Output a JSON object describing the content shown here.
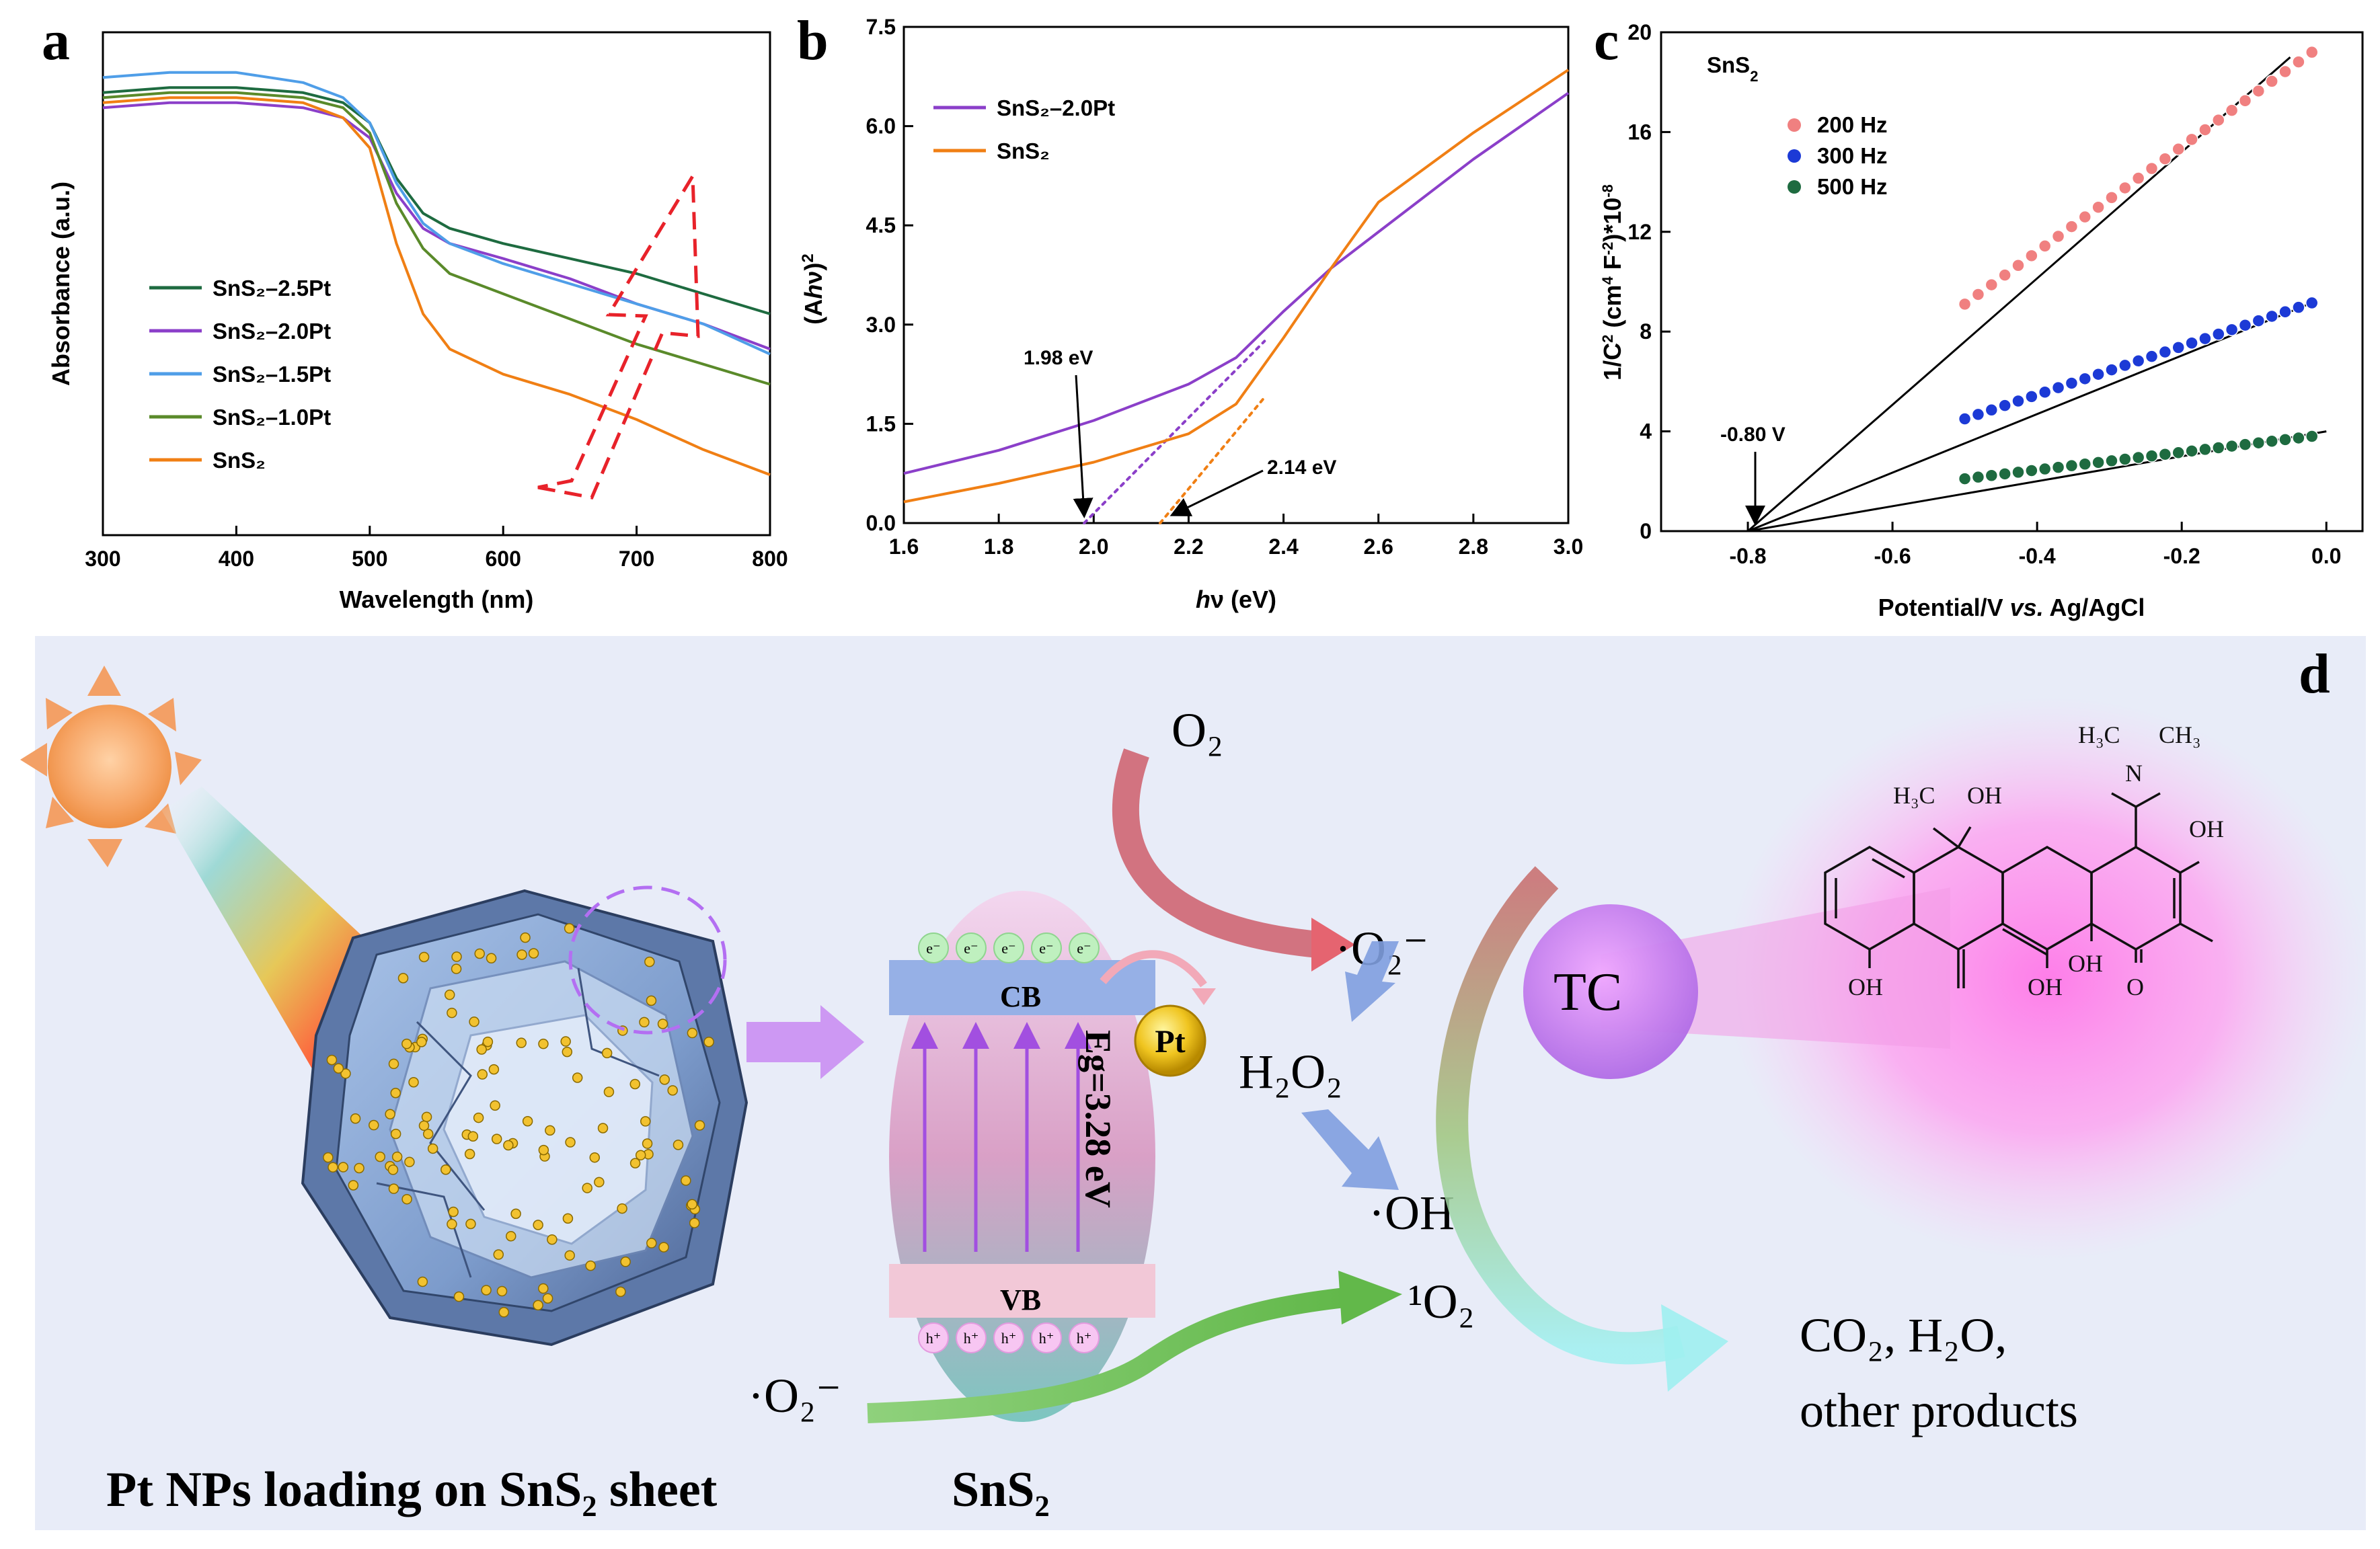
{
  "chart_data": [
    {
      "panel": "a",
      "type": "line",
      "xlabel": "Wavelength (nm)",
      "ylabel": "Absorbance (a.u.)",
      "xlim": [
        300,
        800
      ],
      "ylim": [
        0,
        1
      ],
      "xticks": [
        300,
        400,
        500,
        600,
        700,
        800
      ],
      "legend_position": "left",
      "series": [
        {
          "name": "SnS₂–2.5Pt",
          "color": "#1e6b40",
          "x": [
            300,
            350,
            400,
            450,
            480,
            500,
            520,
            540,
            560,
            600,
            650,
            700,
            750,
            800
          ],
          "y": [
            0.88,
            0.89,
            0.89,
            0.88,
            0.86,
            0.82,
            0.71,
            0.64,
            0.61,
            0.58,
            0.55,
            0.52,
            0.48,
            0.44
          ]
        },
        {
          "name": "SnS₂–2.0Pt",
          "color": "#8b3fc9",
          "x": [
            300,
            350,
            400,
            450,
            480,
            500,
            520,
            540,
            560,
            600,
            650,
            700,
            750,
            800
          ],
          "y": [
            0.85,
            0.86,
            0.86,
            0.85,
            0.83,
            0.79,
            0.68,
            0.61,
            0.58,
            0.55,
            0.51,
            0.46,
            0.42,
            0.37
          ]
        },
        {
          "name": "SnS₂–1.5Pt",
          "color": "#4f9ee8",
          "x": [
            300,
            350,
            400,
            450,
            480,
            500,
            520,
            540,
            560,
            600,
            650,
            700,
            750,
            800
          ],
          "y": [
            0.91,
            0.92,
            0.92,
            0.9,
            0.87,
            0.82,
            0.7,
            0.62,
            0.58,
            0.54,
            0.5,
            0.46,
            0.42,
            0.36
          ]
        },
        {
          "name": "SnS₂–1.0Pt",
          "color": "#5a8a2a",
          "x": [
            300,
            350,
            400,
            450,
            480,
            500,
            520,
            540,
            560,
            600,
            650,
            700,
            750,
            800
          ],
          "y": [
            0.87,
            0.88,
            0.88,
            0.87,
            0.85,
            0.8,
            0.66,
            0.57,
            0.52,
            0.48,
            0.43,
            0.38,
            0.34,
            0.3
          ]
        },
        {
          "name": "SnS₂",
          "color": "#f07f14",
          "x": [
            300,
            350,
            400,
            450,
            480,
            500,
            520,
            540,
            560,
            600,
            650,
            700,
            750,
            800
          ],
          "y": [
            0.86,
            0.87,
            0.87,
            0.86,
            0.83,
            0.77,
            0.58,
            0.44,
            0.37,
            0.32,
            0.28,
            0.23,
            0.17,
            0.12
          ]
        }
      ],
      "annotation": "red dashed arrow pointing toward increasing absorbance"
    },
    {
      "panel": "b",
      "type": "line",
      "xlabel": "hν (eV)",
      "ylabel": "(Ahν)²",
      "xlim": [
        1.6,
        3.0
      ],
      "ylim": [
        0,
        7.5
      ],
      "xticks": [
        1.6,
        1.8,
        2.0,
        2.2,
        2.4,
        2.6,
        2.8,
        3.0
      ],
      "yticks": [
        0.0,
        1.5,
        3.0,
        4.5,
        6.0,
        7.5
      ],
      "series": [
        {
          "name": "SnS₂–2.0Pt",
          "color": "#8b3fc9",
          "x": [
            1.6,
            1.8,
            2.0,
            2.2,
            2.3,
            2.4,
            2.5,
            2.6,
            2.8,
            3.0
          ],
          "y": [
            0.75,
            1.1,
            1.55,
            2.1,
            2.5,
            3.2,
            3.85,
            4.4,
            5.5,
            6.5
          ]
        },
        {
          "name": "SnS₂",
          "color": "#f07f14",
          "x": [
            1.6,
            1.8,
            2.0,
            2.2,
            2.3,
            2.4,
            2.5,
            2.6,
            2.8,
            3.0
          ],
          "y": [
            0.32,
            0.6,
            0.92,
            1.35,
            1.8,
            2.8,
            3.85,
            4.85,
            5.9,
            6.85
          ]
        }
      ],
      "tangents": [
        {
          "series": "SnS₂–2.0Pt",
          "color": "#8b3fc9",
          "x": [
            1.98,
            2.36
          ],
          "y": [
            0,
            2.75
          ]
        },
        {
          "series": "SnS₂",
          "color": "#f07f14",
          "x": [
            2.14,
            2.36
          ],
          "y": [
            0,
            1.9
          ]
        }
      ],
      "annotations": [
        {
          "text": "1.98 eV",
          "x": 1.98
        },
        {
          "text": "2.14 eV",
          "x": 2.14
        }
      ]
    },
    {
      "panel": "c",
      "type": "scatter",
      "title": "SnS₂",
      "xlabel": "Potential/V vs. Ag/AgCl",
      "ylabel": "1/C² (cm⁴ F⁻²)*10⁻⁸",
      "xlim": [
        -0.92,
        0.05
      ],
      "ylim": [
        0,
        20
      ],
      "xticks": [
        -0.8,
        -0.6,
        -0.4,
        -0.2,
        0.0
      ],
      "yticks": [
        0,
        4,
        8,
        12,
        16,
        20
      ],
      "series": [
        {
          "name": "200 Hz",
          "color": "#f08080",
          "x_start": -0.5,
          "x_end": -0.02,
          "y_start": 9.1,
          "y_end": 19.2,
          "fit_x": [
            -0.8,
            -0.05
          ],
          "fit_y": [
            0,
            19.0
          ]
        },
        {
          "name": "300 Hz",
          "color": "#1c3ad6",
          "x_start": -0.5,
          "x_end": -0.02,
          "y_start": 4.5,
          "y_end": 9.15,
          "fit_x": [
            -0.8,
            -0.02
          ],
          "fit_y": [
            0,
            9.15
          ]
        },
        {
          "name": "500 Hz",
          "color": "#1e6b40",
          "x_start": -0.5,
          "x_end": -0.02,
          "y_start": 2.1,
          "y_end": 3.8,
          "fit_x": [
            -0.8,
            0.0
          ],
          "fit_y": [
            0,
            4.0
          ]
        }
      ],
      "annotation": "-0.80 V"
    }
  ],
  "panel_labels": {
    "a": "a",
    "b": "b",
    "c": "c",
    "d": "d"
  },
  "scheme": {
    "o2": "O₂",
    "superoxide": "·O₂⁻",
    "h2o2": "H₂O₂",
    "oh": "·OH",
    "singlet_o2": "¹O₂",
    "superoxide_in": "·O₂⁻",
    "cb": "CB",
    "vb": "VB",
    "eg": "Eg=3.28 eV",
    "pt": "Pt",
    "electron": "e⁻",
    "hole": "h⁺",
    "tc": "TC",
    "products_line1": "CO₂, H₂O,",
    "products_line2": "other products",
    "caption_left": "Pt NPs loading on SnS₂ sheet",
    "caption_right": "SnS₂",
    "molecule": {
      "h3c_left": "H₃C",
      "oh_top": "OH",
      "h3c_n": "H₃C",
      "ch3_n": "CH₃",
      "n": "N",
      "oh_right": "OH",
      "oh_bottom_left": "OH",
      "oh_bottom_mid": "OH",
      "oh_ring": "OH",
      "o": "O"
    }
  }
}
